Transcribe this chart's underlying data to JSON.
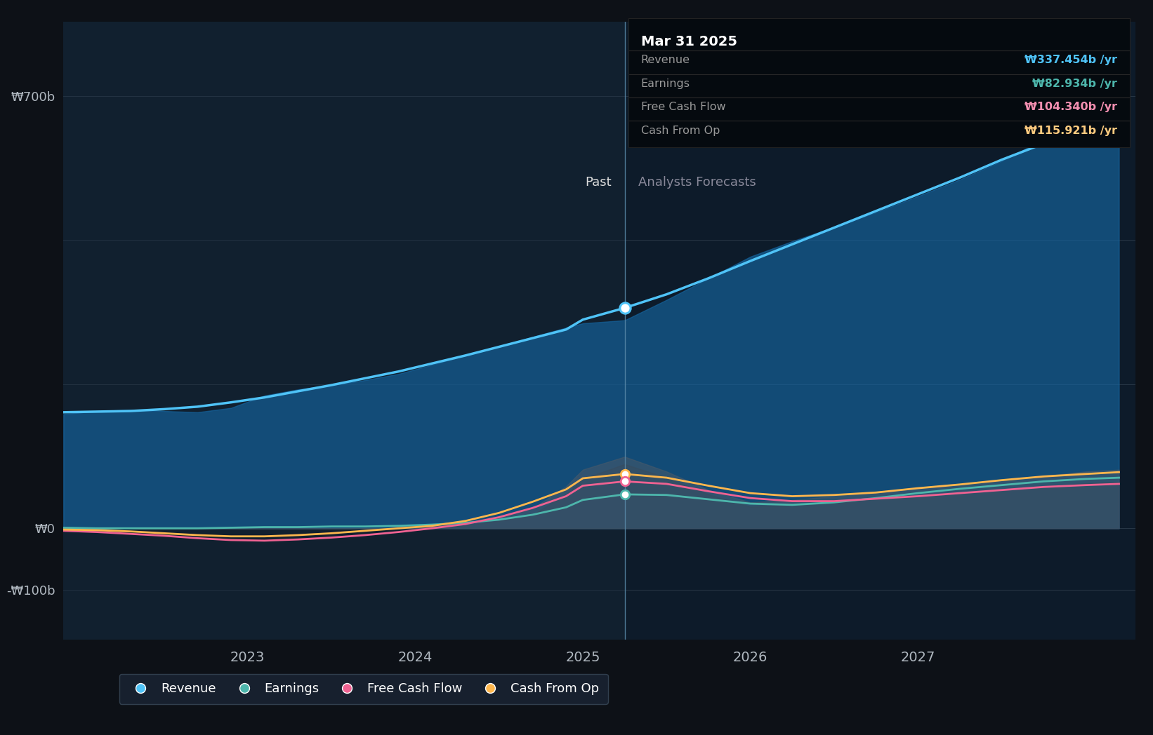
{
  "bg_color": "#0d1117",
  "plot_bg_color": "#0d1b2a",
  "grid_color": "#3a4a5a",
  "tooltip_date": "Mar 31 2025",
  "tooltip_items": [
    {
      "label": "Revenue",
      "value": "₩337.454b /yr",
      "color": "#4fc3f7"
    },
    {
      "label": "Earnings",
      "value": "₩82.934b /yr",
      "color": "#4db6ac"
    },
    {
      "label": "Free Cash Flow",
      "value": "₩104.340b /yr",
      "color": "#f48fb1"
    },
    {
      "label": "Cash From Op",
      "value": "₩115.921b /yr",
      "color": "#ffcc80"
    }
  ],
  "past_label": "Past",
  "forecast_label": "Analysts Forecasts",
  "divider_x": 2025.25,
  "ylim_min": -180,
  "ylim_max": 820,
  "ytick_positions": [
    -100,
    0,
    700
  ],
  "ytick_labels": [
    "-₩100b",
    "₩0",
    "₩700b"
  ],
  "xticks": [
    2023,
    2024,
    2025,
    2026,
    2027
  ],
  "xmin": 2021.9,
  "xmax": 2028.3,
  "revenue_color": "#4fc3f7",
  "earnings_color": "#4db6ac",
  "fcf_color": "#f06292",
  "cfop_color": "#ffb74d",
  "legend_bg": "#1a2535",
  "legend_border": "#3a4a5a",
  "revenue_data_x": [
    2021.9,
    2022.1,
    2022.3,
    2022.5,
    2022.7,
    2022.9,
    2023.1,
    2023.3,
    2023.5,
    2023.7,
    2023.9,
    2024.1,
    2024.3,
    2024.5,
    2024.7,
    2024.9,
    2025.0,
    2025.25,
    2025.5,
    2025.75,
    2026.0,
    2026.25,
    2026.5,
    2026.75,
    2027.0,
    2027.25,
    2027.5,
    2027.75,
    2028.0,
    2028.2
  ],
  "revenue_data_y": [
    185,
    190,
    192,
    190,
    188,
    195,
    215,
    225,
    232,
    240,
    250,
    265,
    280,
    295,
    310,
    325,
    332,
    337,
    370,
    405,
    440,
    465,
    488,
    512,
    538,
    565,
    595,
    630,
    665,
    690
  ],
  "earnings_data_x": [
    2021.9,
    2022.1,
    2022.3,
    2022.5,
    2022.7,
    2022.9,
    2023.1,
    2023.3,
    2023.5,
    2023.7,
    2023.9,
    2024.1,
    2024.3,
    2024.5,
    2024.7,
    2024.9,
    2025.0,
    2025.25,
    2025.5,
    2025.75,
    2026.0,
    2026.25,
    2026.5,
    2026.75,
    2027.0,
    2027.25,
    2027.5,
    2027.75,
    2028.0,
    2028.2
  ],
  "earnings_data_y": [
    2,
    1,
    0,
    -1,
    0,
    2,
    3,
    4,
    3,
    2,
    3,
    5,
    8,
    12,
    18,
    28,
    45,
    83,
    65,
    42,
    28,
    32,
    40,
    50,
    58,
    65,
    72,
    78,
    83,
    85
  ],
  "fcf_data_x": [
    2021.9,
    2022.1,
    2022.3,
    2022.5,
    2022.7,
    2022.9,
    2023.1,
    2023.3,
    2023.5,
    2023.7,
    2023.9,
    2024.1,
    2024.3,
    2024.5,
    2024.7,
    2024.9,
    2025.0,
    2025.25,
    2025.5,
    2025.75,
    2026.0,
    2026.25,
    2026.5,
    2026.75,
    2027.0,
    2027.25,
    2027.5,
    2027.75,
    2028.0,
    2028.2
  ],
  "fcf_data_y": [
    -3,
    -5,
    -8,
    -12,
    -18,
    -22,
    -25,
    -20,
    -15,
    -12,
    -8,
    -2,
    5,
    12,
    22,
    55,
    80,
    104,
    82,
    55,
    35,
    38,
    42,
    48,
    53,
    58,
    63,
    68,
    73,
    75
  ],
  "cfop_data_x": [
    2021.9,
    2022.1,
    2022.3,
    2022.5,
    2022.7,
    2022.9,
    2023.1,
    2023.3,
    2023.5,
    2023.7,
    2023.9,
    2024.1,
    2024.3,
    2024.5,
    2024.7,
    2024.9,
    2025.0,
    2025.25,
    2025.5,
    2025.75,
    2026.0,
    2026.25,
    2026.5,
    2026.75,
    2027.0,
    2027.25,
    2027.5,
    2027.75,
    2028.0,
    2028.2
  ],
  "cfop_data_y": [
    -1,
    -3,
    -5,
    -8,
    -12,
    -15,
    -18,
    -12,
    -8,
    -5,
    -2,
    3,
    8,
    18,
    32,
    68,
    95,
    116,
    92,
    62,
    42,
    46,
    52,
    58,
    65,
    72,
    78,
    85,
    92,
    95
  ],
  "grid_hlines": [
    -100,
    0,
    233,
    467,
    700
  ],
  "past_bg_color": "#1a2a3a",
  "divider_color": "#5a8aaa",
  "tooltip_bg": "#050a0f",
  "tooltip_border": "#333333"
}
